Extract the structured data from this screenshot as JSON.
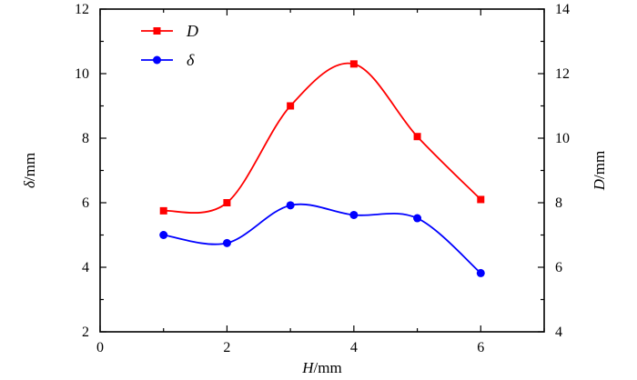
{
  "chart_data": {
    "type": "line",
    "x_axis": {
      "label_symbol": "H",
      "label_unit": "/mm",
      "range": [
        0,
        7
      ],
      "ticks": [
        "0",
        "2",
        "4",
        "6"
      ]
    },
    "y_axis_left": {
      "label_symbol": "δ",
      "label_unit": "/mm",
      "range": [
        2,
        12
      ],
      "ticks": [
        "2",
        "4",
        "6",
        "8",
        "10",
        "12"
      ]
    },
    "y_axis_right": {
      "label_symbol": "D",
      "label_unit": "/mm",
      "range": [
        4,
        14
      ],
      "ticks": [
        "4",
        "6",
        "8",
        "10",
        "12",
        "14"
      ]
    },
    "grid": false,
    "legend_position": "top-left",
    "series": [
      {
        "name": "D",
        "axis": "right",
        "color": "#ff0000",
        "marker": "square",
        "x": [
          1,
          2,
          3,
          4,
          5,
          6
        ],
        "y": [
          7.75,
          8.0,
          11.0,
          12.3,
          10.05,
          8.1
        ]
      },
      {
        "name": "δ",
        "axis": "left",
        "color": "#0000ff",
        "marker": "circle",
        "x": [
          1,
          2,
          3,
          4,
          5,
          6
        ],
        "y": [
          5.0,
          4.75,
          5.92,
          5.62,
          5.52,
          3.82
        ]
      }
    ]
  }
}
